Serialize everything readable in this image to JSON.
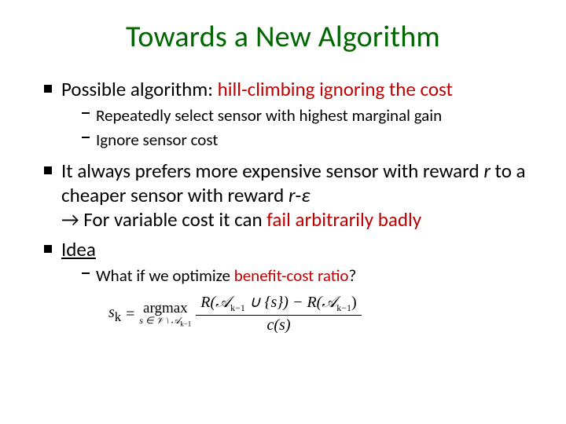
{
  "colors": {
    "title": "#006600",
    "accent": "#c00000",
    "text": "#000000",
    "background": "#ffffff"
  },
  "typography": {
    "title_fontsize": 38,
    "bullet_fontsize": 25,
    "subbullet_fontsize": 21,
    "formula_fontsize": 20,
    "font_family": "Calibri"
  },
  "title": "Towards a New Algorithm",
  "bullets": {
    "b1": {
      "pre": "Possible algorithm: ",
      "accent": "hill-climbing ignoring the cost",
      "sub1": "Repeatedly select sensor with highest marginal gain",
      "sub2": "Ignore sensor cost"
    },
    "b2": {
      "line1a": "It always prefers more expensive sensor with reward ",
      "line1b_i": "r",
      "line1c": " to a cheaper sensor with reward ",
      "line1d_i": "r",
      "line1e": "-",
      "line1f_i": "ε",
      "line2a": "→ For variable cost it can ",
      "line2b_accent": "fail arbitrarily badly"
    },
    "b3": {
      "label": "Idea",
      "sub1a": "What if we optimize ",
      "sub1b_accent": "benefit-cost ratio",
      "sub1c": "?"
    }
  },
  "formula": {
    "lhs_var": "s",
    "lhs_sub": "k",
    "eq": " = ",
    "op_top": "argmax",
    "op_sub": "s ∈ 𝒱 \\ 𝒜",
    "op_sub_idx": "k−1",
    "num_a": "R(𝒜",
    "num_b": "k−1",
    "num_c": " ∪ {s}) − R(𝒜",
    "num_d": "k−1",
    "num_e": ")",
    "den_a": "c(s)"
  }
}
